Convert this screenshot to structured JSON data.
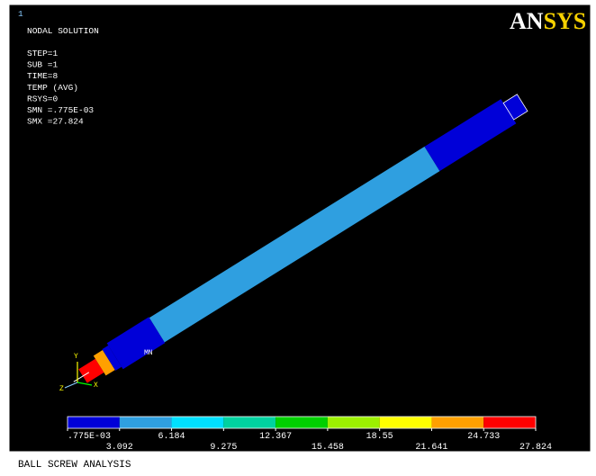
{
  "window_number": "1",
  "header": {
    "title": "NODAL SOLUTION",
    "lines": [
      "STEP=1",
      "SUB =1",
      "TIME=8",
      "TEMP     (AVG)",
      "RSYS=0",
      "SMN =.775E-03",
      "SMX =27.824"
    ]
  },
  "logo": {
    "parts": [
      "AN",
      "SYS"
    ],
    "colors": [
      "#ffffff",
      "#f5d000"
    ]
  },
  "model": {
    "min_label": "MN",
    "axes": [
      "Y",
      "Z",
      "X"
    ]
  },
  "legend": {
    "colors": [
      "#0000d8",
      "#2f9fe0",
      "#00e0ff",
      "#00d2a0",
      "#00d000",
      "#9cf000",
      "#ffff00",
      "#ffa000",
      "#ff0000"
    ],
    "labels": [
      ".775E-03",
      "3.092",
      "6.184",
      "9.275",
      "12.367",
      "15.458",
      "18.55",
      "21.641",
      "24.733",
      "27.824"
    ]
  },
  "footer": "BALL SCREW ANALYSIS"
}
